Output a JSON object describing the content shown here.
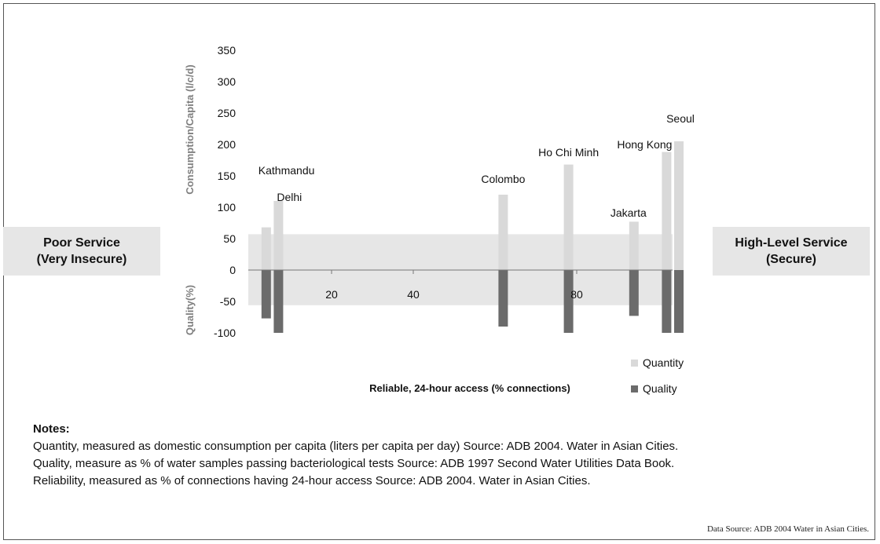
{
  "chart_data": {
    "type": "bar",
    "x_ticks": [
      20,
      40,
      80
    ],
    "xlim": [
      0,
      100
    ],
    "y_ticks": [
      350,
      300,
      250,
      200,
      150,
      100,
      50,
      0,
      -50,
      -100
    ],
    "ylim": [
      -100,
      350
    ],
    "ylabel_top": "Consumption/Capita (l/c/d)",
    "ylabel_bottom": "Quality(%)",
    "xlabel": "Reliable, 24-hour access (% connections)",
    "series": [
      {
        "name": "Quantity",
        "color": "#d9d9d9"
      },
      {
        "name": "Quality",
        "color": "#6b6b6b"
      }
    ],
    "cities": [
      {
        "name": "Kathmandu",
        "reliability": 4,
        "quantity": 68,
        "quality": -77
      },
      {
        "name": "Delhi",
        "reliability": 7,
        "quantity": 110,
        "quality": -100
      },
      {
        "name": "Colombo",
        "reliability": 62,
        "quantity": 120,
        "quality": -90
      },
      {
        "name": "Ho Chi Minh",
        "reliability": 78,
        "quantity": 168,
        "quality": -100
      },
      {
        "name": "Jakarta",
        "reliability": 94,
        "quantity": 77,
        "quality": -73
      },
      {
        "name": "Hong Kong",
        "reliability": 102,
        "quantity": 188,
        "quality": -100
      },
      {
        "name": "Seoul",
        "reliability": 105,
        "quantity": 205,
        "quality": -100
      }
    ],
    "band_range": [
      -56,
      57
    ]
  },
  "left_box": {
    "line1": "Poor Service",
    "line2": "(Very Insecure)"
  },
  "right_box": {
    "line1": "High-Level Service",
    "line2": "(Secure)"
  },
  "notes": {
    "heading": "Notes:",
    "line1": "Quantity, measured as domestic consumption per capita (liters per capita per day) Source: ADB 2004. Water in Asian Cities.",
    "line2": "Quality, measure as % of water samples passing bacteriological tests Source: ADB 1997 Second Water Utilities Data Book.",
    "line3": "Reliability, measured as % of connections having 24-hour access Source: ADB 2004. Water in Asian Cities."
  },
  "credit": "Data Source: ADB 2004 Water in Asian Cities."
}
